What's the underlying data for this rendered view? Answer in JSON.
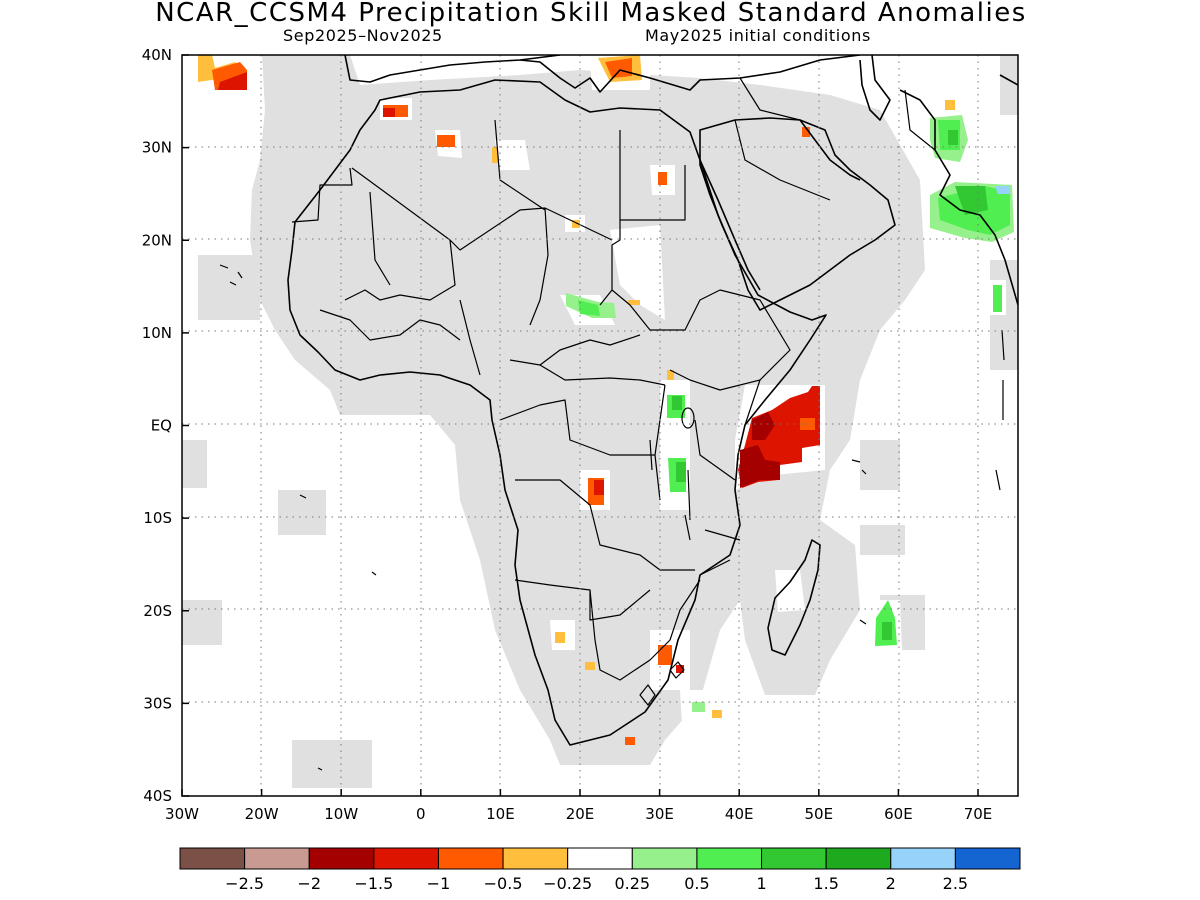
{
  "title": "NCAR_CCSM4 Precipitation Skill Masked Standard Anomalies",
  "subtitle_left": "Sep2025–Nov2025",
  "subtitle_right": "May2025 initial conditions",
  "lat_labels": [
    "40N",
    "30N",
    "20N",
    "10N",
    "EQ",
    "10S",
    "20S",
    "30S",
    "40S"
  ],
  "lon_labels": [
    "30W",
    "20W",
    "10W",
    "0",
    "10E",
    "20E",
    "30E",
    "40E",
    "50E",
    "60E",
    "70E"
  ],
  "colorbar": {
    "colors": [
      "#7b5046",
      "#c89a92",
      "#a50000",
      "#dc1400",
      "#ff5a00",
      "#ffbe3c",
      "#ffffff",
      "#96f08c",
      "#50ee50",
      "#32c832",
      "#1eaa1e",
      "#96d2fa",
      "#1464d2"
    ],
    "labels": [
      "−2.5",
      "−2",
      "−1.5",
      "−1",
      "−0.5",
      "−0.25",
      "0.25",
      "0.5",
      "1",
      "1.5",
      "2",
      "2.5"
    ]
  },
  "map": {
    "masked_color": "#e0e0e0",
    "region": "Africa and surrounding seas"
  }
}
